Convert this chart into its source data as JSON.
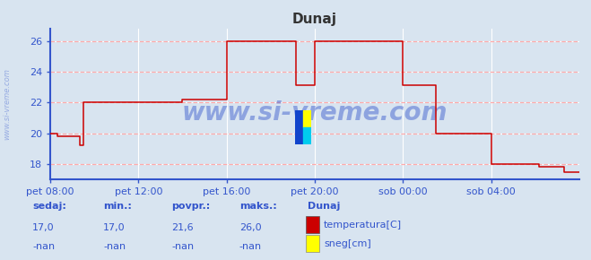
{
  "title": "Dunaj",
  "title_color": "#333333",
  "bg_color": "#d8e4f0",
  "plot_bg_color": "#d8e4f0",
  "line_color": "#cc0000",
  "grid_color": "#ffffff",
  "grid_h_color": "#ffaaaa",
  "axis_color": "#3355cc",
  "tick_label_color": "#3355cc",
  "ylim": [
    17.0,
    26.8
  ],
  "yticks": [
    18,
    20,
    22,
    24,
    26
  ],
  "xlim": [
    0,
    144
  ],
  "xtick_labels": [
    "pet 08:00",
    "pet 12:00",
    "pet 16:00",
    "pet 20:00",
    "sob 00:00",
    "sob 04:00"
  ],
  "xtick_positions": [
    0,
    24,
    48,
    72,
    96,
    120
  ],
  "watermark": "www.si-vreme.com",
  "watermark_color": "#3355cc",
  "watermark_alpha": 0.45,
  "left_label": "www.si-vreme.com",
  "temp_data_x": [
    0,
    2,
    2,
    8,
    8,
    9,
    9,
    36,
    36,
    48,
    48,
    67,
    67,
    72,
    72,
    96,
    96,
    105,
    105,
    120,
    120,
    133,
    133,
    140,
    140,
    144
  ],
  "temp_data_y": [
    20,
    20,
    19.8,
    19.8,
    19.2,
    19.2,
    22,
    22,
    22.2,
    22.2,
    26,
    26,
    23.1,
    23.1,
    26,
    26,
    23.1,
    23.1,
    20,
    20,
    18,
    18,
    17.8,
    17.8,
    17.5,
    17.5
  ],
  "legend_title": "Dunaj",
  "legend_items": [
    {
      "label": "temperatura[C]",
      "color": "#cc0000"
    },
    {
      "label": "sneg[cm]",
      "color": "#ffff00"
    }
  ],
  "stats_labels": [
    "sedaj:",
    "min.:",
    "povpr.:",
    "maks.:"
  ],
  "stats_values": [
    "17,0",
    "17,0",
    "21,6",
    "26,0"
  ],
  "stats_color": "#3355cc",
  "figsize": [
    6.59,
    2.9
  ],
  "dpi": 100
}
